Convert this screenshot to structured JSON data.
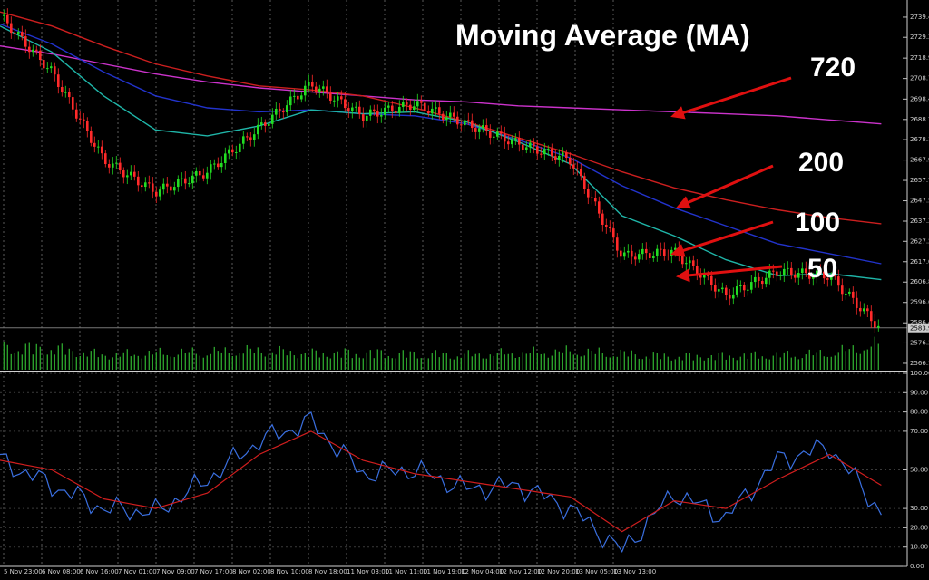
{
  "title": "Moving Average (MA)",
  "colors": {
    "background": "#000000",
    "bull_candle": "#22dd22",
    "bear_candle": "#ff2a2a",
    "ma50": "#1fb5a8",
    "ma100": "#2233cc",
    "ma200": "#cc1f1f",
    "ma720": "#cc33cc",
    "volume": "#2ea82e",
    "osc_main": "#3a6fe0",
    "osc_signal": "#d01e1e",
    "arrow": "#e01010",
    "ema_fast": "#e0c020"
  },
  "annotations": [
    {
      "label": "720",
      "target": "ma720"
    },
    {
      "label": "200",
      "target": "ma200"
    },
    {
      "label": "100",
      "target": "ma100"
    },
    {
      "label": "50",
      "target": "ma50"
    }
  ],
  "chart_data": [
    {
      "type": "line",
      "x_labels": [
        "5 Nov 23:00",
        "6 Nov 08:00",
        "6 Nov 16:00",
        "7 Nov 01:00",
        "7 Nov 09:00",
        "7 Nov 17:00",
        "8 Nov 02:00",
        "8 Nov 10:00",
        "8 Nov 18:00",
        "11 Nov 03:00",
        "11 Nov 11:00",
        "11 Nov 19:00",
        "12 Nov 04:00",
        "12 Nov 12:00",
        "12 Nov 20:00",
        "13 Nov 05:00",
        "13 Nov 13:00"
      ],
      "y_ticks": [
        2739.4,
        2729.3,
        2718.9,
        2708.7,
        2698.4,
        2688.2,
        2678.1,
        2667.9,
        2657.7,
        2647.5,
        2637.3,
        2627.2,
        2617.0,
        2606.8,
        2596.6,
        2586.4,
        2576.3,
        2566.1
      ],
      "ylim": [
        2562,
        2748
      ],
      "current_price": 2583.9,
      "x": [
        0,
        4,
        8,
        12,
        16,
        20,
        24,
        28,
        32,
        36,
        40,
        44,
        48,
        52,
        56,
        60,
        64,
        68
      ],
      "close": [
        2740,
        2712,
        2668,
        2652,
        2662,
        2684,
        2706,
        2690,
        2696,
        2686,
        2676,
        2668,
        2620,
        2622,
        2600,
        2612,
        2610,
        2583
      ],
      "series": [
        {
          "name": "720",
          "values": [
            2725,
            2721,
            2716,
            2711,
            2707,
            2704,
            2702,
            2700,
            2698,
            2697,
            2695,
            2694,
            2693,
            2692,
            2691,
            2690,
            2688,
            2686
          ]
        },
        {
          "name": "200",
          "values": [
            2742,
            2735,
            2725,
            2716,
            2710,
            2705,
            2703,
            2700,
            2694,
            2687,
            2679,
            2671,
            2662,
            2654,
            2648,
            2643,
            2639,
            2636
          ]
        },
        {
          "name": "100",
          "values": [
            2736,
            2726,
            2712,
            2700,
            2694,
            2692,
            2693,
            2691,
            2690,
            2686,
            2678,
            2669,
            2655,
            2644,
            2635,
            2626,
            2621,
            2616
          ]
        },
        {
          "name": "50",
          "values": [
            2735,
            2722,
            2700,
            2683,
            2680,
            2685,
            2693,
            2691,
            2692,
            2687,
            2677,
            2666,
            2640,
            2630,
            2618,
            2610,
            2611,
            2608
          ]
        }
      ],
      "volume": [
        62,
        58,
        40,
        45,
        48,
        52,
        44,
        46,
        42,
        40,
        45,
        50,
        44,
        36,
        38,
        40,
        45,
        70
      ]
    },
    {
      "type": "line",
      "y_ticks": [
        100.0,
        90.0,
        80.0,
        70.0,
        50.0,
        30.0,
        20.0,
        10.0,
        0.0
      ],
      "ylim": [
        0,
        100
      ],
      "x": [
        0,
        4,
        8,
        12,
        16,
        20,
        24,
        28,
        32,
        36,
        40,
        44,
        48,
        52,
        56,
        60,
        64,
        68
      ],
      "series": [
        {
          "name": "",
          "values": [
            55,
            42,
            30,
            28,
            45,
            65,
            75,
            48,
            50,
            40,
            42,
            30,
            8,
            38,
            25,
            55,
            62,
            28
          ]
        },
        {
          "name": "",
          "values": [
            55,
            50,
            35,
            30,
            38,
            58,
            70,
            55,
            48,
            44,
            40,
            36,
            18,
            34,
            30,
            45,
            58,
            42
          ]
        }
      ]
    }
  ]
}
